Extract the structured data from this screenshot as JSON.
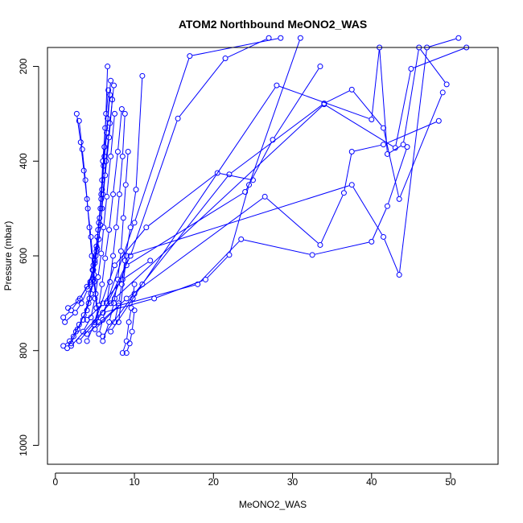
{
  "chart_data": {
    "type": "scatter",
    "title": "ATOM2 Northbound MeONO2_WAS",
    "xlabel": "MeONO2_WAS",
    "ylabel": "Pressure (mbar)",
    "xlim": [
      -1,
      56
    ],
    "ylim": [
      1040,
      160
    ],
    "y_reversed": true,
    "grid": false,
    "legend": "none",
    "x_ticks": [
      0,
      10,
      20,
      30,
      40,
      50
    ],
    "y_ticks": [
      200,
      400,
      600,
      800,
      1000
    ],
    "x_tick_labels": [
      "0",
      "10",
      "20",
      "30",
      "40",
      "50"
    ],
    "y_tick_labels": [
      "200",
      "400",
      "600",
      "800",
      "1000"
    ],
    "marker": "open-circle",
    "line_color": "#0000ff",
    "series": [
      {
        "x": [
          1.0,
          1.8,
          2.6,
          3.5,
          4.2,
          4.6,
          5.0,
          5.3,
          5.7,
          5.9,
          6.2,
          6.4,
          6.6
        ],
        "y": [
          790,
          780,
          760,
          735,
          700,
          660,
          610,
          560,
          500,
          440,
          370,
          300,
          200
        ]
      },
      {
        "x": [
          1.5,
          2.3,
          3.0,
          4.0,
          4.5,
          4.9,
          5.2,
          5.5,
          5.8,
          6.0,
          6.3,
          6.7
        ],
        "y": [
          795,
          770,
          745,
          715,
          680,
          640,
          590,
          530,
          470,
          400,
          330,
          250
        ]
      },
      {
        "x": [
          2.0,
          2.8,
          3.6,
          4.3,
          4.8,
          5.1,
          5.4,
          5.8,
          6.1,
          6.5,
          6.9
        ],
        "y": [
          785,
          755,
          725,
          690,
          650,
          600,
          545,
          480,
          410,
          340,
          260
        ]
      },
      {
        "x": [
          1.2,
          2.5,
          3.3,
          4.1,
          4.7,
          5.2,
          5.6,
          5.9,
          6.2,
          6.6,
          7.0
        ],
        "y": [
          740,
          720,
          700,
          670,
          630,
          580,
          520,
          460,
          390,
          310,
          230
        ]
      },
      {
        "x": [
          1.0,
          2.0,
          3.1,
          4.4,
          5.0,
          5.5,
          5.9,
          6.3,
          6.8,
          7.2
        ],
        "y": [
          730,
          715,
          690,
          655,
          615,
          565,
          500,
          430,
          350,
          270
        ]
      },
      {
        "x": [
          1.6,
          2.9,
          4.0,
          4.8,
          5.3,
          5.7,
          6.0,
          6.4,
          6.9,
          7.4
        ],
        "y": [
          710,
          695,
          665,
          630,
          585,
          535,
          470,
          400,
          320,
          240
        ]
      },
      {
        "x": [
          3.5,
          4.5,
          5.0,
          5.4,
          5.8,
          6.1,
          6.5,
          7.0,
          7.5
        ],
        "y": [
          760,
          730,
          690,
          645,
          595,
          540,
          475,
          390,
          300
        ]
      },
      {
        "x": [
          4.0,
          4.9,
          5.5,
          5.9,
          6.3,
          6.8,
          7.3,
          7.9,
          8.4
        ],
        "y": [
          780,
          745,
          705,
          660,
          605,
          545,
          470,
          380,
          290
        ]
      },
      {
        "x": [
          5.5,
          6.0,
          6.5,
          6.9,
          7.3,
          7.7,
          8.1,
          8.5,
          8.8
        ],
        "y": [
          765,
          735,
          700,
          655,
          600,
          540,
          470,
          390,
          300
        ]
      },
      {
        "x": [
          6.0,
          6.8,
          7.4,
          7.9,
          8.3,
          8.6,
          8.9,
          9.2
        ],
        "y": [
          780,
          740,
          700,
          650,
          590,
          520,
          450,
          380
        ]
      },
      {
        "x": [
          2.7,
          3.2,
          3.6,
          4.0,
          4.3,
          4.6,
          4.9,
          5.2
        ],
        "y": [
          300,
          360,
          420,
          480,
          540,
          600,
          655,
          710
        ]
      },
      {
        "x": [
          3.0,
          3.4,
          3.8,
          4.1,
          4.5,
          4.8,
          5.1,
          5.5
        ],
        "y": [
          315,
          375,
          440,
          500,
          560,
          620,
          680,
          740
        ]
      },
      {
        "x": [
          7.5,
          8.0,
          8.4,
          8.8,
          9.5,
          10.2,
          11.0
        ],
        "y": [
          740,
          700,
          660,
          610,
          540,
          460,
          220
        ]
      },
      {
        "x": [
          8.5,
          9.0,
          9.3,
          9.6,
          9.8,
          10.0
        ],
        "y": [
          805,
          780,
          740,
          710,
          690,
          660
        ]
      },
      {
        "x": [
          9.0,
          9.4,
          9.7,
          10.0
        ],
        "y": [
          805,
          785,
          760,
          715
        ]
      },
      {
        "x": [
          4.0,
          6.0,
          8.5,
          12.0
        ],
        "y": [
          735,
          700,
          650,
          610
        ]
      },
      {
        "x": [
          5.0,
          7.5,
          11.5,
          20.5,
          25.0
        ],
        "y": [
          740,
          620,
          540,
          425,
          440
        ]
      },
      {
        "x": [
          6.0,
          9.5,
          15.5,
          21.5,
          27.0
        ],
        "y": [
          720,
          600,
          310,
          183,
          140
        ]
      },
      {
        "x": [
          6.5,
          10.0,
          17.0,
          28.5
        ],
        "y": [
          700,
          530,
          178,
          140
        ]
      },
      {
        "x": [
          7.0,
          9.0,
          24.0,
          27.5,
          33.5
        ],
        "y": [
          700,
          620,
          465,
          355,
          200
        ]
      },
      {
        "x": [
          3.0,
          6.0,
          12.5,
          19.0,
          22.0,
          24.5,
          31.0
        ],
        "y": [
          780,
          720,
          690,
          650,
          598,
          450,
          140
        ]
      },
      {
        "x": [
          4.0,
          8.0,
          18.0,
          23.5,
          32.5,
          40.0,
          42.0,
          44.5
        ],
        "y": [
          765,
          705,
          660,
          565,
          598,
          570,
          495,
          370
        ]
      },
      {
        "x": [
          5.0,
          9.0,
          26.5,
          33.5,
          36.5,
          37.5,
          41.5,
          48.5
        ],
        "y": [
          755,
          690,
          475,
          577,
          467,
          380,
          365,
          315
        ]
      },
      {
        "x": [
          6.0,
          10.0,
          22.0,
          34.0,
          37.5,
          41.5,
          43.5,
          49.0
        ],
        "y": [
          770,
          680,
          428,
          278,
          249,
          330,
          480,
          255
        ]
      },
      {
        "x": [
          7.0,
          11.0,
          28.0,
          40.0,
          41.0,
          42.0,
          44.0,
          46.0,
          49.5
        ],
        "y": [
          760,
          660,
          240,
          312,
          160,
          385,
          365,
          160,
          238
        ]
      },
      {
        "x": [
          8.0,
          9.0,
          37.5,
          41.5,
          43.5,
          47.0,
          51.0
        ],
        "y": [
          740,
          600,
          450,
          560,
          640,
          160,
          140
        ]
      },
      {
        "x": [
          2.0,
          7.5,
          34.0,
          43.0,
          45.0,
          52.0
        ],
        "y": [
          790,
          690,
          280,
          372,
          205,
          160
        ]
      }
    ]
  }
}
